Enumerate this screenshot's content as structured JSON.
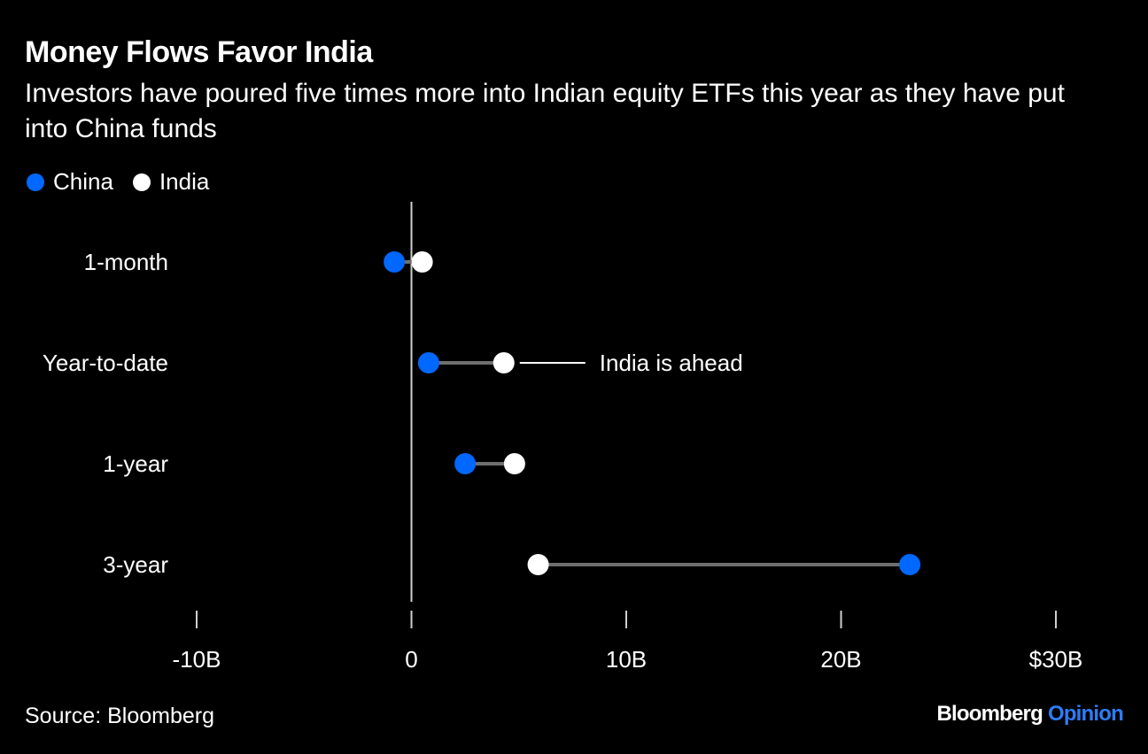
{
  "header": {
    "title": "Money Flows Favor India",
    "subtitle": "Investors have poured five times more into Indian equity ETFs this year as they have put into China funds"
  },
  "legend": {
    "items": [
      {
        "label": "China",
        "color": "#0068ff"
      },
      {
        "label": "India",
        "color": "#ffffff"
      }
    ]
  },
  "chart_data": {
    "type": "dumbbell",
    "categories": [
      "1-month",
      "Year-to-date",
      "1-year",
      "3-year"
    ],
    "series": [
      {
        "name": "China",
        "color": "#0068ff",
        "values": [
          -0.8,
          0.8,
          2.5,
          23.2
        ]
      },
      {
        "name": "India",
        "color": "#ffffff",
        "values": [
          0.5,
          4.3,
          4.8,
          5.9
        ]
      }
    ],
    "xlim": [
      -10,
      30
    ],
    "xticks": [
      -10,
      0,
      10,
      20,
      30
    ],
    "xtick_labels": [
      "-10B",
      "0",
      "10B",
      "20B",
      "$30B"
    ],
    "annotations": [
      {
        "category": "Year-to-date",
        "text": "India is ahead"
      }
    ]
  },
  "footer": {
    "source": "Source: Bloomberg",
    "brand_main": "Bloomberg",
    "brand_accent": "Opinion",
    "brand_accent_color": "#2e7cf6"
  }
}
